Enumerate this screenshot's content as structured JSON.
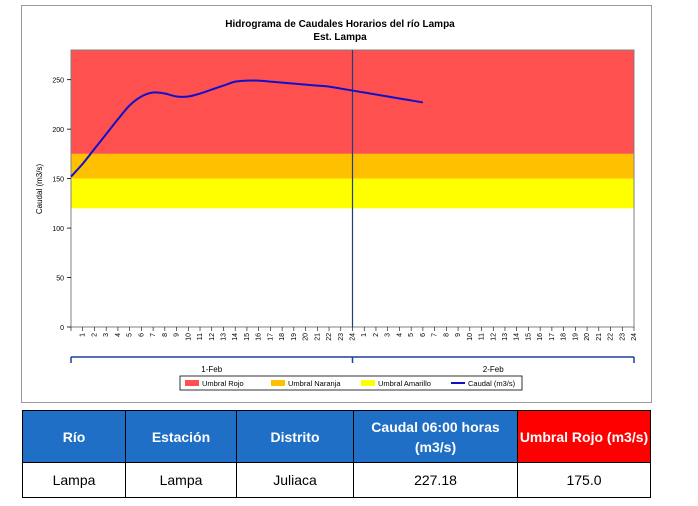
{
  "chart_data": {
    "type": "line",
    "title": "Hidrograma de Caudales Horarios del río Lampa",
    "subtitle": "Est. Lampa",
    "ylabel": "Caudal  (m3/s)",
    "ylim": [
      0,
      280
    ],
    "yticks": [
      0,
      50,
      100,
      150,
      200,
      250
    ],
    "xticks": [
      "1",
      "2",
      "3",
      "4",
      "5",
      "6",
      "7",
      "8",
      "9",
      "10",
      "11",
      "12",
      "13",
      "14",
      "15",
      "16",
      "17",
      "18",
      "19",
      "20",
      "21",
      "22",
      "23",
      "24",
      "1",
      "2",
      "3",
      "4",
      "5",
      "6",
      "7",
      "8",
      "9",
      "10",
      "11",
      "12",
      "13",
      "14",
      "15",
      "16",
      "17",
      "18",
      "19",
      "20",
      "21",
      "22",
      "23",
      "24"
    ],
    "day_labels": [
      "1-Feb",
      "2-Feb"
    ],
    "bands": [
      {
        "name": "Umbral Rojo",
        "from": 175,
        "to": 280,
        "color": "#ff5050"
      },
      {
        "name": "Umbral Naranja",
        "from": 150,
        "to": 175,
        "color": "#ffc000"
      },
      {
        "name": "Umbral Amarillo",
        "from": 120,
        "to": 150,
        "color": "#ffff00"
      }
    ],
    "series": [
      {
        "name": "Caudal (m3/s)",
        "color": "#1010c8",
        "x": [
          0,
          1,
          2,
          3,
          4,
          5,
          6,
          7,
          8,
          9,
          10,
          11,
          12,
          13,
          14,
          15,
          16,
          17,
          18,
          19,
          20,
          21,
          22,
          23,
          24,
          25,
          26,
          27,
          28,
          29,
          30
        ],
        "values": [
          152,
          165,
          180,
          195,
          210,
          224,
          233,
          237,
          236,
          233,
          233,
          236,
          240,
          244,
          248,
          249,
          249,
          248,
          247,
          246,
          245,
          244,
          243,
          241,
          239,
          237,
          235,
          233,
          231,
          229,
          227
        ]
      }
    ],
    "marker_hour": 24,
    "legend": [
      "Umbral Rojo",
      "Umbral Naranja",
      "Umbral Amarillo",
      "Caudal (m3/s)"
    ],
    "legend_position": "bottom",
    "grid": false
  },
  "table": {
    "headers": [
      "Río",
      "Estación",
      "Distrito",
      "Caudal  06:00 horas (m3/s)",
      "Umbral Rojo (m3/s)"
    ],
    "row": [
      "Lampa",
      "Lampa",
      "Juliaca",
      "227.18",
      "175.0"
    ]
  }
}
